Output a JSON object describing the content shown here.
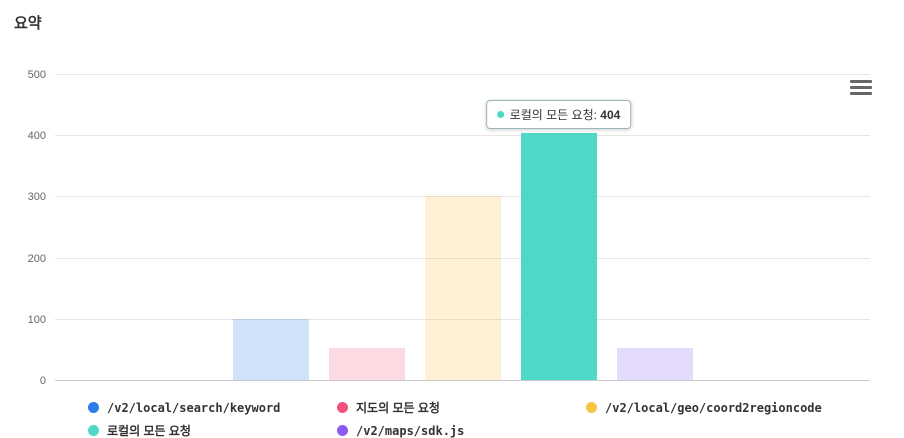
{
  "title": "요약",
  "export_menu": {
    "icon": "hamburger-menu"
  },
  "chart_data": {
    "type": "bar",
    "title": "요약",
    "categories": [
      ""
    ],
    "series": [
      {
        "name": "/v2/local/search/keyword",
        "color": "#2b7ce9",
        "values": [
          100
        ],
        "dimmed": true
      },
      {
        "name": "지도의 모든 요청",
        "color": "#f4517c",
        "values": [
          52
        ],
        "dimmed": true
      },
      {
        "name": "/v2/local/geo/coord2regioncode",
        "color": "#f6c642",
        "values": [
          300
        ],
        "dimmed": true
      },
      {
        "name": "로컬의 모든 요청",
        "color": "#4fd8c8",
        "values": [
          404
        ],
        "dimmed": false
      },
      {
        "name": "/v2/maps/sdk.js",
        "color": "#8a5cf5",
        "values": [
          52
        ],
        "dimmed": true
      }
    ],
    "ylim": [
      0,
      500
    ],
    "yticks": [
      0,
      100,
      200,
      300,
      400,
      500
    ],
    "grid": true,
    "legend_position": "bottom"
  },
  "tooltip": {
    "series": "로컬의 모든 요청",
    "label": "로컬의 모든 요청",
    "separator": ": ",
    "value": "404",
    "color": "#4fd8c8",
    "border_color": "#9ab6bb"
  }
}
